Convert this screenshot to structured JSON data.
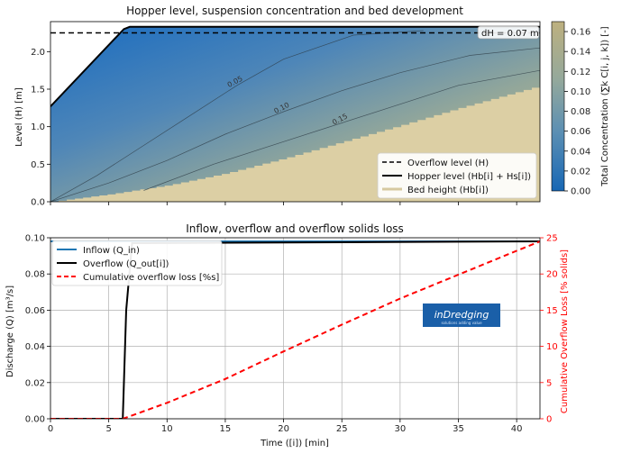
{
  "chart_data": [
    {
      "type": "heatmap",
      "title": "Hopper level, suspension concentration and bed development",
      "ylabel": "Level (H) [m]",
      "xlim": [
        0,
        42
      ],
      "ylim": [
        0,
        2.4
      ],
      "yticks": [
        0.0,
        0.5,
        1.0,
        1.5,
        2.0
      ],
      "colorbar": {
        "label": "Total Concentration (∑k C[i, j, k]) [-]",
        "range": [
          0.0,
          0.17
        ],
        "ticks": [
          0.0,
          0.02,
          0.04,
          0.06,
          0.08,
          0.1,
          0.12,
          0.14,
          0.16
        ],
        "colors": [
          "#1f6fbf",
          "#7fa3a6",
          "#b6ad83"
        ]
      },
      "annotation": "dH = 0.07 m",
      "contour_labels": [
        "0.05",
        "0.10",
        "0.15"
      ],
      "contours": [
        {
          "label": "0.05",
          "x": [
            0,
            4,
            8,
            12,
            16,
            20,
            26,
            32
          ],
          "y": [
            0.0,
            0.35,
            0.75,
            1.15,
            1.55,
            1.9,
            2.22,
            2.28
          ]
        },
        {
          "label": "0.10",
          "x": [
            0,
            5,
            10,
            15,
            20,
            25,
            30,
            36,
            42
          ],
          "y": [
            0.0,
            0.25,
            0.55,
            0.9,
            1.2,
            1.48,
            1.72,
            1.95,
            2.05
          ]
        },
        {
          "label": "0.15",
          "x": [
            8,
            14,
            20,
            25,
            30,
            35,
            42
          ],
          "y": [
            0.15,
            0.5,
            0.8,
            1.05,
            1.3,
            1.55,
            1.75
          ]
        }
      ],
      "series": [
        {
          "name": "Overflow level (H)",
          "style": "dashed",
          "color": "#000000",
          "x": [
            0,
            42
          ],
          "y": [
            2.25,
            2.25
          ]
        },
        {
          "name": "Hopper level (Hb[i] + Hs[i])",
          "style": "solid",
          "color": "#000000",
          "x": [
            0,
            6.3,
            6.8,
            42
          ],
          "y": [
            1.27,
            2.3,
            2.33,
            2.33
          ]
        },
        {
          "name": "Bed height (Hb[i])",
          "style": "solid",
          "color": "#d6c9a0",
          "x": [
            0,
            5,
            10,
            15,
            20,
            25,
            30,
            35,
            42
          ],
          "y": [
            0.0,
            0.1,
            0.22,
            0.38,
            0.58,
            0.8,
            1.02,
            1.25,
            1.55
          ]
        }
      ],
      "legend": "lower-right"
    },
    {
      "type": "line",
      "title": "Inflow, overflow and overflow solids loss",
      "xlabel": "Time ([i]) [min]",
      "ylabel": "Discharge (Q) [m³/s]",
      "y2label": "Cumulative Overflow Loss [% solids]",
      "xlim": [
        0,
        42
      ],
      "xticks": [
        0,
        5,
        10,
        15,
        20,
        25,
        30,
        35,
        40
      ],
      "ylim": [
        0,
        0.1
      ],
      "yticks": [
        0.0,
        0.02,
        0.04,
        0.06,
        0.08,
        0.1
      ],
      "y2lim": [
        0,
        25
      ],
      "y2ticks": [
        0,
        5,
        10,
        15,
        20,
        25
      ],
      "grid": true,
      "legend": "top-left",
      "series": [
        {
          "name": "Inflow (Q_in)",
          "color": "#1f77b4",
          "style": "solid",
          "axis": "left",
          "x": [
            0,
            42
          ],
          "y": [
            0.098,
            0.098
          ]
        },
        {
          "name": "Overflow (Q_out[i])",
          "color": "#000000",
          "style": "solid",
          "axis": "left",
          "x": [
            0,
            6.2,
            6.5,
            7.0,
            42
          ],
          "y": [
            0.0,
            0.0,
            0.06,
            0.097,
            0.098
          ]
        },
        {
          "name": "Cumulative overflow loss [%s]",
          "color": "#ff0000",
          "style": "dashed",
          "axis": "right",
          "x": [
            0,
            6.2,
            10,
            15,
            20,
            25,
            30,
            35,
            40,
            42
          ],
          "y": [
            0,
            0,
            2.2,
            5.5,
            9.3,
            13.0,
            16.6,
            19.9,
            23.2,
            24.5
          ]
        }
      ]
    }
  ],
  "logo": {
    "text": "inDredging",
    "tagline": "solutions adding value",
    "bg": "#1a5fa8"
  }
}
